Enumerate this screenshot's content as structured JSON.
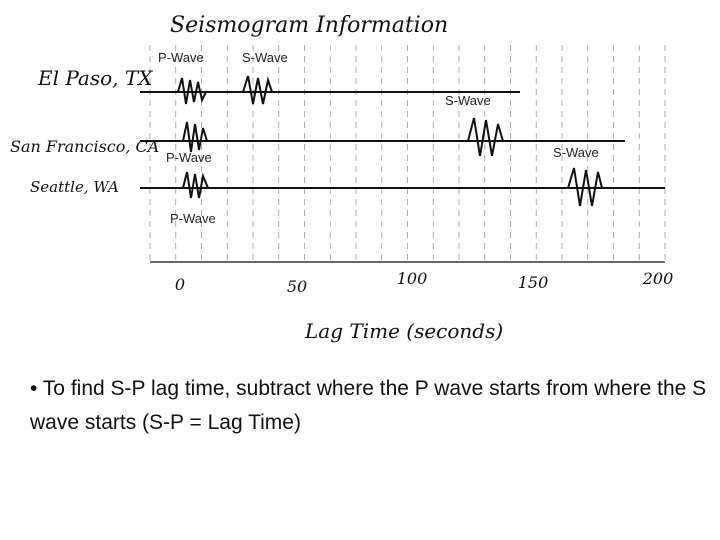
{
  "title": "Seismogram Information",
  "stations": [
    "El Paso, TX",
    "San Francisco, CA",
    "Seattle, WA"
  ],
  "wave_labels": [
    "P-Wave",
    "S-Wave",
    "S-Wave",
    "P-Wave",
    "S-Wave",
    "P-Wave"
  ],
  "axis": {
    "ticks": [
      "0",
      "50",
      "100",
      "150",
      "200"
    ],
    "label": "Lag Time (seconds)"
  },
  "bullet": "• To find S-P lag time, subtract where the P wave starts from where the S wave starts (S-P = Lag Time)"
}
